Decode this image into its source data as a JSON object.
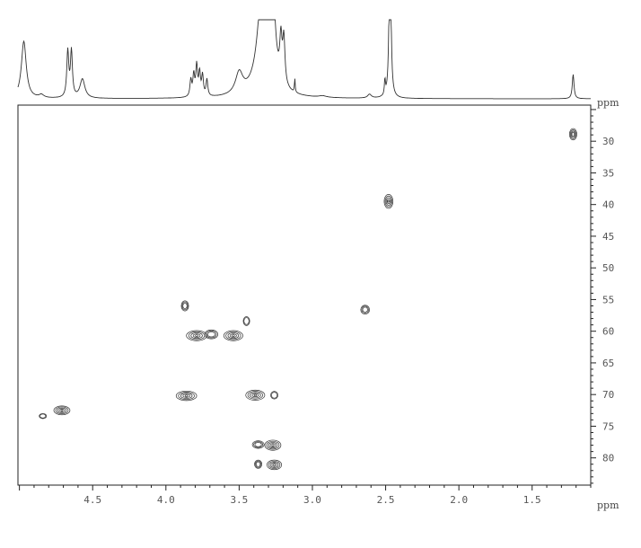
{
  "chart_data": {
    "type": "2d-nmr-contour",
    "x_axis": {
      "label": "ppm",
      "range": [
        5.01,
        1.1
      ],
      "ticks": [
        4.5,
        4.0,
        3.5,
        3.0,
        2.5,
        2.0,
        1.5
      ],
      "tick_labels": [
        "4.5",
        "4.0",
        "3.5",
        "3.0",
        "2.5",
        "2.0",
        "1.5"
      ],
      "reversed": true
    },
    "y_axis": {
      "label": "ppm",
      "range": [
        24.3,
        84.3
      ],
      "ticks": [
        30,
        35,
        40,
        45,
        50,
        55,
        60,
        65,
        70,
        75,
        80
      ],
      "tick_labels": [
        "30",
        "35",
        "40",
        "45",
        "50",
        "55",
        "60",
        "65",
        "70",
        "75",
        "80"
      ],
      "reversed": true,
      "position": "right"
    },
    "grid": false,
    "cross_peaks": [
      {
        "h": 1.22,
        "c": 28.9,
        "h_width": 0.025,
        "c_width": 0.9,
        "levels": 3
      },
      {
        "h": 2.48,
        "c": 39.5,
        "h_width": 0.03,
        "c_width": 1.1,
        "levels": 4
      },
      {
        "h": 3.87,
        "c": 56.0,
        "h_width": 0.025,
        "c_width": 0.8,
        "levels": 2
      },
      {
        "h": 2.64,
        "c": 56.6,
        "h_width": 0.03,
        "c_width": 0.7,
        "levels": 2
      },
      {
        "h": 3.45,
        "c": 58.4,
        "h_width": 0.022,
        "c_width": 0.7,
        "levels": 1
      },
      {
        "h": 3.79,
        "c": 60.7,
        "h_width": 0.07,
        "c_width": 0.8,
        "levels": 4
      },
      {
        "h": 3.69,
        "c": 60.5,
        "h_width": 0.045,
        "c_width": 0.7,
        "levels": 2
      },
      {
        "h": 3.54,
        "c": 60.7,
        "h_width": 0.065,
        "c_width": 0.8,
        "levels": 4
      },
      {
        "h": 3.86,
        "c": 70.2,
        "h_width": 0.07,
        "c_width": 0.75,
        "levels": 4
      },
      {
        "h": 3.39,
        "c": 70.1,
        "h_width": 0.065,
        "c_width": 0.8,
        "levels": 4
      },
      {
        "h": 3.26,
        "c": 70.1,
        "h_width": 0.025,
        "c_width": 0.6,
        "levels": 1
      },
      {
        "h": 4.71,
        "c": 72.5,
        "h_width": 0.055,
        "c_width": 0.7,
        "levels": 4
      },
      {
        "h": 4.84,
        "c": 73.4,
        "h_width": 0.025,
        "c_width": 0.4,
        "levels": 1
      },
      {
        "h": 3.37,
        "c": 77.9,
        "h_width": 0.04,
        "c_width": 0.6,
        "levels": 2
      },
      {
        "h": 3.27,
        "c": 78.0,
        "h_width": 0.055,
        "c_width": 0.8,
        "levels": 4
      },
      {
        "h": 3.37,
        "c": 81.0,
        "h_width": 0.025,
        "c_width": 0.65,
        "levels": 2
      },
      {
        "h": 3.26,
        "c": 81.1,
        "h_width": 0.05,
        "c_width": 0.75,
        "levels": 4
      }
    ],
    "projection_1h": {
      "label": "ppm",
      "peaks": [
        {
          "ppm": 4.97,
          "intensity": 0.75,
          "width": 0.02
        },
        {
          "ppm": 4.85,
          "intensity": 0.04,
          "width": 0.02
        },
        {
          "ppm": 4.67,
          "intensity": 0.6,
          "width": 0.008
        },
        {
          "ppm": 4.645,
          "intensity": 0.6,
          "width": 0.008
        },
        {
          "ppm": 4.57,
          "intensity": 0.25,
          "width": 0.02
        },
        {
          "ppm": 3.83,
          "intensity": 0.22,
          "width": 0.007
        },
        {
          "ppm": 3.81,
          "intensity": 0.28,
          "width": 0.007
        },
        {
          "ppm": 3.79,
          "intensity": 0.4,
          "width": 0.007
        },
        {
          "ppm": 3.77,
          "intensity": 0.3,
          "width": 0.007
        },
        {
          "ppm": 3.75,
          "intensity": 0.27,
          "width": 0.007
        },
        {
          "ppm": 3.72,
          "intensity": 0.22,
          "width": 0.007
        },
        {
          "ppm": 3.5,
          "intensity": 0.28,
          "width": 0.03
        },
        {
          "ppm": 3.34,
          "intensity": 1.4,
          "width": 0.04
        },
        {
          "ppm": 3.28,
          "intensity": 2.0,
          "width": 0.02
        },
        {
          "ppm": 3.215,
          "intensity": 0.55,
          "width": 0.009
        },
        {
          "ppm": 3.195,
          "intensity": 0.6,
          "width": 0.009
        },
        {
          "ppm": 3.12,
          "intensity": 0.18,
          "width": 0.003
        },
        {
          "ppm": 2.93,
          "intensity": 0.02,
          "width": 0.03
        },
        {
          "ppm": 2.61,
          "intensity": 0.05,
          "width": 0.015
        },
        {
          "ppm": 2.505,
          "intensity": 0.2,
          "width": 0.004
        },
        {
          "ppm": 2.47,
          "intensity": 3.0,
          "width": 0.006
        },
        {
          "ppm": 1.22,
          "intensity": 0.32,
          "width": 0.007
        }
      ]
    }
  },
  "colors": {
    "contour": "#333333",
    "axis": "#222222",
    "spectrum": "#333333"
  }
}
